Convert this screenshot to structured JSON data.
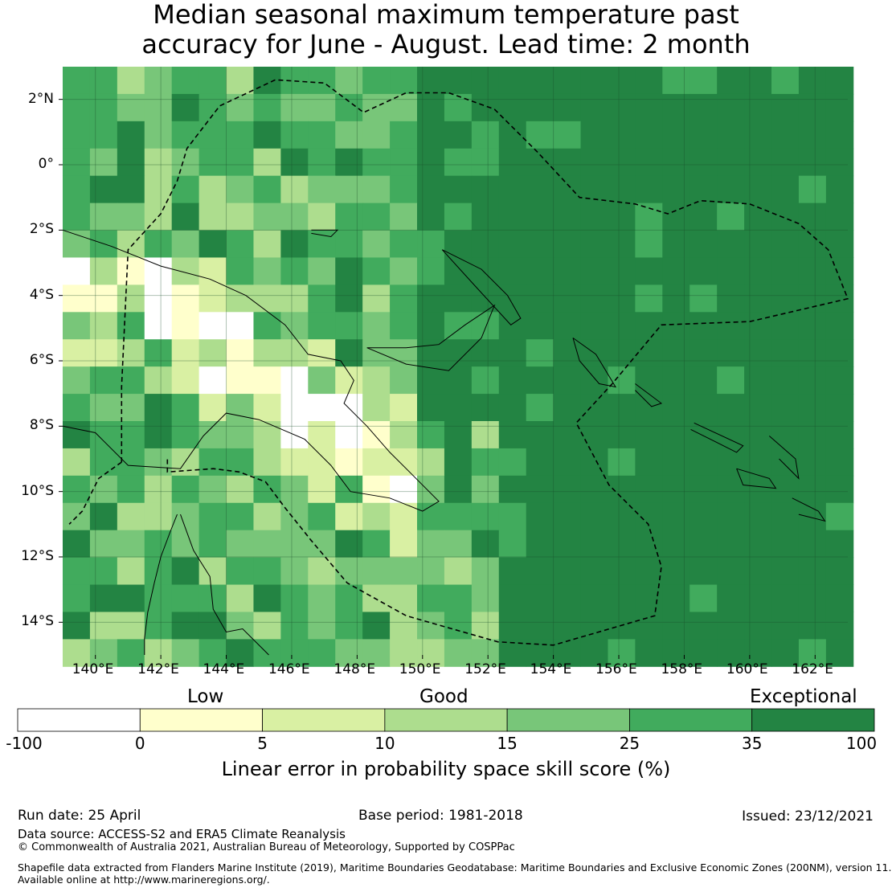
{
  "title_line1": "Median seasonal maximum temperature past",
  "title_line2": "accuracy for June - August. Lead time: 2 month",
  "map": {
    "lon_labels": [
      "140°E",
      "142°E",
      "144°E",
      "146°E",
      "148°E",
      "150°E",
      "152°E",
      "154°E",
      "156°E",
      "158°E",
      "160°E",
      "162°E"
    ],
    "lat_labels": [
      "2°N",
      "0°",
      "2°S",
      "4°S",
      "6°S",
      "8°S",
      "10°S",
      "12°S",
      "14°S"
    ]
  },
  "colorbar": {
    "categories": [
      "Low",
      "Good",
      "Exceptional"
    ],
    "ticks": [
      "-100",
      "0",
      "5",
      "10",
      "15",
      "25",
      "35",
      "100"
    ],
    "colors": [
      "#ffffff",
      "#ffffcc",
      "#d9f0a3",
      "#addd8e",
      "#78c679",
      "#41ab5d",
      "#238443"
    ],
    "label": "Linear error in probability space skill score (%)"
  },
  "footer": {
    "run_date": "Run date: 25 April",
    "base_period": "Base period: 1981-2018",
    "issued": "Issued: 23/12/2021",
    "data_source": "Data source: ACCESS-S2 and ERA5 Climate Reanalysis",
    "copyright": "© Commonwealth of Australia 2021, Australian Bureau of Meteorology, Supported by COSPPac",
    "shapefile1": "Shapefile data extracted from Flanders Marine Institute (2019), Maritime Boundaries Geodatabase: Maritime Boundaries and Exclusive Economic Zones (200NM), version 11.",
    "shapefile2": "Available online at http://www.marineregions.org/."
  }
}
